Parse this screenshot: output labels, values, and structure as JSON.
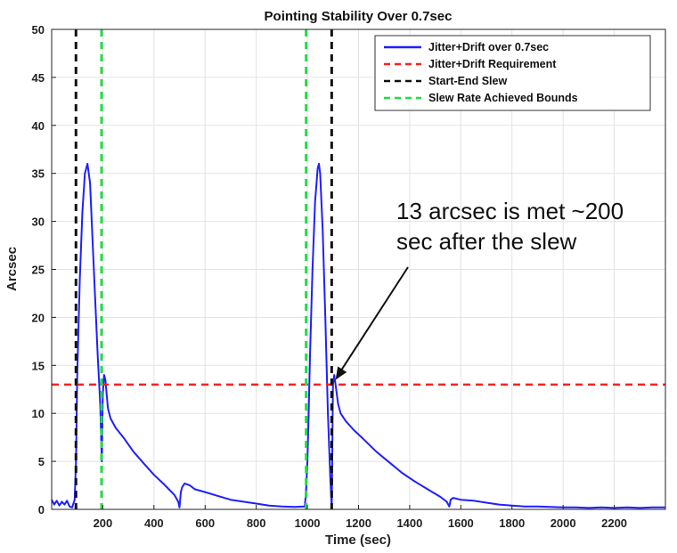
{
  "chart_data": {
    "type": "line",
    "title": "Pointing Stability Over 0.7sec",
    "xlabel": "Time (sec)",
    "ylabel": "Arcsec",
    "xlim": [
      0,
      2400
    ],
    "ylim": [
      0,
      50
    ],
    "xticks": [
      200,
      400,
      600,
      800,
      1000,
      1200,
      1400,
      1600,
      1800,
      2000,
      2200
    ],
    "yticks": [
      0,
      5,
      10,
      15,
      20,
      25,
      30,
      35,
      40,
      45,
      50
    ],
    "grid": true,
    "legend_position": "top-right",
    "series": [
      {
        "name": "Jitter+Drift over 0.7sec",
        "color": "#1f1fff",
        "style": "solid",
        "x": [
          0,
          10,
          20,
          30,
          40,
          50,
          60,
          70,
          80,
          90,
          95,
          100,
          110,
          120,
          130,
          140,
          150,
          160,
          170,
          180,
          190,
          196,
          200,
          205,
          210,
          215,
          220,
          230,
          250,
          280,
          320,
          360,
          400,
          440,
          480,
          495,
          500,
          505,
          510,
          520,
          540,
          560,
          600,
          650,
          700,
          750,
          800,
          850,
          900,
          950,
          990,
          995,
          1000,
          1005,
          1010,
          1020,
          1030,
          1040,
          1045,
          1050,
          1060,
          1070,
          1080,
          1090,
          1095,
          1100,
          1105,
          1110,
          1115,
          1120,
          1130,
          1150,
          1180,
          1220,
          1270,
          1320,
          1370,
          1420,
          1470,
          1520,
          1545,
          1555,
          1560,
          1570,
          1600,
          1650,
          1700,
          1750,
          1800,
          1850,
          1900,
          1950,
          2000,
          2050,
          2100,
          2150,
          2200,
          2250,
          2300,
          2350,
          2400
        ],
        "y": [
          1.0,
          0.5,
          0.9,
          0.4,
          0.8,
          0.5,
          0.9,
          0.3,
          0.2,
          1.0,
          5.0,
          14.0,
          24.0,
          31.0,
          35.0,
          36.0,
          34.0,
          28.0,
          22.0,
          16.0,
          11.0,
          5.0,
          12.0,
          14.0,
          13.5,
          12.0,
          10.5,
          9.5,
          8.5,
          7.5,
          6.0,
          4.8,
          3.6,
          2.6,
          1.5,
          0.8,
          0.2,
          1.8,
          2.3,
          2.7,
          2.5,
          2.1,
          1.8,
          1.4,
          1.0,
          0.8,
          0.6,
          0.4,
          0.3,
          0.25,
          0.3,
          2.0,
          5.0,
          10.0,
          16.0,
          25.0,
          32.0,
          35.5,
          36.0,
          35.0,
          29.0,
          20.0,
          10.0,
          3.0,
          0.2,
          13.0,
          14.0,
          13.0,
          12.0,
          11.0,
          10.0,
          9.2,
          8.3,
          7.3,
          6.0,
          4.9,
          3.8,
          2.9,
          2.1,
          1.3,
          0.8,
          0.3,
          1.0,
          1.2,
          1.0,
          0.9,
          0.7,
          0.5,
          0.4,
          0.3,
          0.3,
          0.25,
          0.2,
          0.2,
          0.15,
          0.2,
          0.15,
          0.2,
          0.15,
          0.2,
          0.2
        ]
      },
      {
        "name": "Jitter+Drift Requirement",
        "color": "#ff2020",
        "style": "dashed",
        "x": [
          0,
          2400
        ],
        "y": [
          13,
          13
        ]
      },
      {
        "name": "Start-End Slew",
        "color": "#111111",
        "style": "dashed",
        "vlines": [
          95,
          1095
        ]
      },
      {
        "name": "Slew Rate Achieved Bounds",
        "color": "#22dd44",
        "style": "dashed",
        "vlines": [
          195,
          995
        ]
      }
    ],
    "annotations": [
      {
        "text_lines": [
          "13 arcsec is met ~200",
          "sec after the slew"
        ],
        "arrow_to": [
          1110,
          13.5
        ]
      }
    ]
  }
}
